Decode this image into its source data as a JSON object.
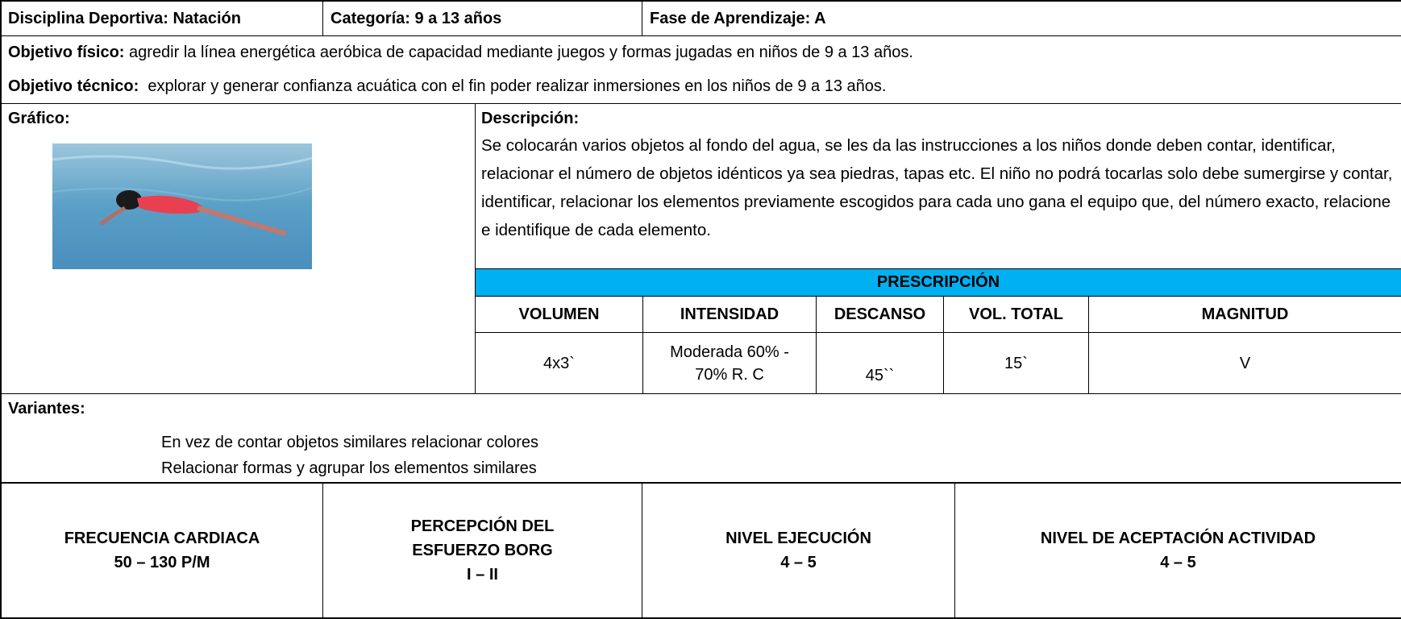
{
  "header": {
    "discipline": "Disciplina Deportiva: Natación",
    "category": "Categoría: 9 a 13 años",
    "phase": "Fase de Aprendizaje: A"
  },
  "objectives": {
    "physical": {
      "label": "Objetivo físico:",
      "text": "agredir la línea energética aeróbica de capacidad mediante juegos y formas jugadas en niños de 9 a 13 años."
    },
    "technical": {
      "label": "Objetivo técnico:",
      "text": "explorar y generar confianza acuática con el fin poder realizar inmersiones en los niños de 9 a 13 años."
    }
  },
  "graphic": {
    "label": "Gráfico:"
  },
  "description": {
    "label": "Descripción:",
    "text": "Se colocarán varios objetos al fondo del agua, se les da las instrucciones a los niños donde deben contar, identificar, relacionar el número de objetos idénticos ya sea piedras, tapas etc. El niño no podrá tocarlas solo debe sumergirse y contar, identificar, relacionar los elementos previamente escogidos para cada uno gana el equipo que, del número exacto, relacione e identifique de cada elemento."
  },
  "prescription": {
    "title": "PRESCRIPCIÓN",
    "headers": [
      "VOLUMEN",
      "INTENSIDAD",
      "DESCANSO",
      "VOL. TOTAL",
      "MAGNITUD"
    ],
    "values": [
      "4x3`",
      "Moderada 60% - 70% R. C",
      "45``",
      "15`",
      "V"
    ]
  },
  "variants": {
    "label": "Variantes:",
    "items": [
      "En vez de contar objetos similares relacionar colores",
      "Relacionar formas y agrupar los elementos similares"
    ]
  },
  "footer": [
    {
      "title": "FRECUENCIA CARDIACA",
      "value": "50 – 130 P/M"
    },
    {
      "title": "PERCEPCIÓN DEL ESFUERZO BORG",
      "value": "I – II"
    },
    {
      "title": "NIVEL EJECUCIÓN",
      "value": "4 – 5"
    },
    {
      "title": "NIVEL DE ACEPTACIÓN ACTIVIDAD",
      "value": "4 – 5"
    }
  ]
}
